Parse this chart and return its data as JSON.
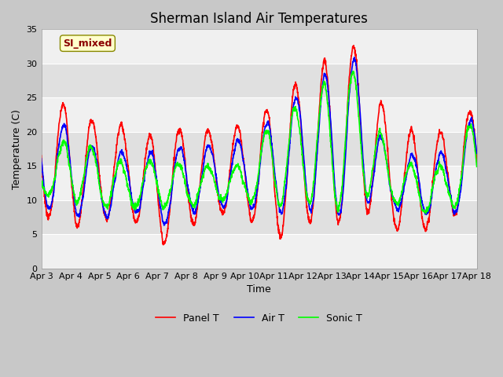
{
  "title": "Sherman Island Air Temperatures",
  "xlabel": "Time",
  "ylabel": "Temperature (C)",
  "ylim": [
    0,
    35
  ],
  "x_tick_labels": [
    "Apr 3",
    "Apr 4",
    "Apr 5",
    "Apr 6",
    "Apr 7",
    "Apr 8",
    "Apr 9",
    "Apr 10",
    "Apr 11",
    "Apr 12",
    "Apr 13",
    "Apr 14",
    "Apr 15",
    "Apr 16",
    "Apr 17",
    "Apr 18"
  ],
  "x_tick_positions": [
    0,
    1,
    2,
    3,
    4,
    5,
    6,
    7,
    8,
    9,
    10,
    11,
    12,
    13,
    14,
    15
  ],
  "annotation_text": "SI_mixed",
  "legend_labels": [
    "Panel T",
    "Air T",
    "Sonic T"
  ],
  "colors": [
    "red",
    "blue",
    "lime"
  ],
  "linewidths": [
    1.2,
    1.2,
    1.2
  ],
  "title_fontsize": 12,
  "axis_label_fontsize": 9,
  "tick_label_fontsize": 8,
  "legend_fontsize": 9,
  "fig_facecolor": "#c8c8c8",
  "ax_facecolor": "#e0e0e0"
}
